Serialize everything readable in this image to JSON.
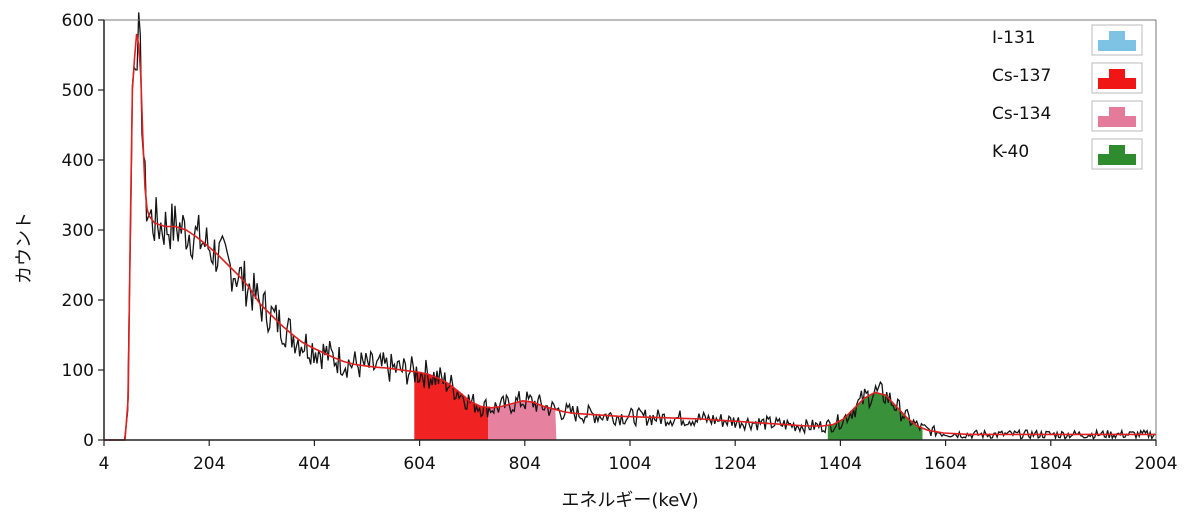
{
  "chart_data": {
    "type": "line",
    "title": "",
    "xlabel": "エネルギー(keV)",
    "ylabel": "カウント",
    "xlim": [
      4,
      2004
    ],
    "ylim": [
      0,
      600
    ],
    "x_ticks": [
      4,
      204,
      404,
      604,
      804,
      1004,
      1204,
      1404,
      1604,
      1804,
      2004
    ],
    "y_ticks": [
      0,
      100,
      200,
      300,
      400,
      500,
      600
    ],
    "grid": "none",
    "legend_position": "top-right",
    "legend": [
      {
        "label": "I-131",
        "color": "#7ec3e3"
      },
      {
        "label": "Cs-137",
        "color": "#f01616"
      },
      {
        "label": "Cs-134",
        "color": "#e57b9a"
      },
      {
        "label": "K-40",
        "color": "#2e8b2e"
      }
    ],
    "series": [
      {
        "color": "#e02020",
        "points": [
          [
            4,
            0
          ],
          [
            44,
            0
          ],
          [
            50,
            60
          ],
          [
            54,
            300
          ],
          [
            58,
            500
          ],
          [
            62,
            545
          ],
          [
            66,
            580
          ],
          [
            70,
            565
          ],
          [
            74,
            520
          ],
          [
            78,
            430
          ],
          [
            82,
            360
          ],
          [
            86,
            330
          ],
          [
            90,
            320
          ],
          [
            100,
            310
          ],
          [
            120,
            305
          ],
          [
            140,
            305
          ],
          [
            160,
            300
          ],
          [
            180,
            290
          ],
          [
            200,
            278
          ],
          [
            220,
            265
          ],
          [
            240,
            250
          ],
          [
            260,
            235
          ],
          [
            280,
            218
          ],
          [
            300,
            195
          ],
          [
            320,
            180
          ],
          [
            340,
            165
          ],
          [
            360,
            152
          ],
          [
            380,
            140
          ],
          [
            400,
            132
          ],
          [
            420,
            125
          ],
          [
            440,
            118
          ],
          [
            460,
            112
          ],
          [
            480,
            108
          ],
          [
            500,
            106
          ],
          [
            520,
            104
          ],
          [
            540,
            103
          ],
          [
            560,
            101
          ],
          [
            580,
            99
          ],
          [
            600,
            97
          ],
          [
            620,
            94
          ],
          [
            640,
            88
          ],
          [
            660,
            80
          ],
          [
            680,
            68
          ],
          [
            700,
            55
          ],
          [
            720,
            48
          ],
          [
            740,
            46
          ],
          [
            760,
            48
          ],
          [
            780,
            52
          ],
          [
            800,
            56
          ],
          [
            820,
            54
          ],
          [
            840,
            48
          ],
          [
            860,
            44
          ],
          [
            880,
            40
          ],
          [
            900,
            38
          ],
          [
            940,
            36
          ],
          [
            980,
            34
          ],
          [
            1020,
            33
          ],
          [
            1060,
            32
          ],
          [
            1100,
            31
          ],
          [
            1140,
            30
          ],
          [
            1180,
            28
          ],
          [
            1220,
            26
          ],
          [
            1260,
            24
          ],
          [
            1300,
            22
          ],
          [
            1340,
            20
          ],
          [
            1370,
            20
          ],
          [
            1390,
            22
          ],
          [
            1410,
            30
          ],
          [
            1430,
            45
          ],
          [
            1450,
            60
          ],
          [
            1470,
            68
          ],
          [
            1490,
            64
          ],
          [
            1510,
            48
          ],
          [
            1530,
            32
          ],
          [
            1550,
            20
          ],
          [
            1570,
            14
          ],
          [
            1600,
            10
          ],
          [
            1650,
            8
          ],
          [
            1700,
            8
          ],
          [
            1750,
            8
          ],
          [
            1800,
            8
          ],
          [
            1850,
            8
          ],
          [
            1900,
            8
          ],
          [
            1950,
            8
          ],
          [
            2004,
            8
          ]
        ]
      }
    ],
    "highlighted_peaks": [
      {
        "label": "Cs-137",
        "x_range": [
          594,
          734
        ],
        "color": "#f01616"
      },
      {
        "label": "Cs-134",
        "x_range": [
          734,
          864
        ],
        "color": "#e57b9a"
      },
      {
        "label": "K-40",
        "x_range": [
          1380,
          1560
        ],
        "color": "#2e8b2e"
      }
    ]
  }
}
